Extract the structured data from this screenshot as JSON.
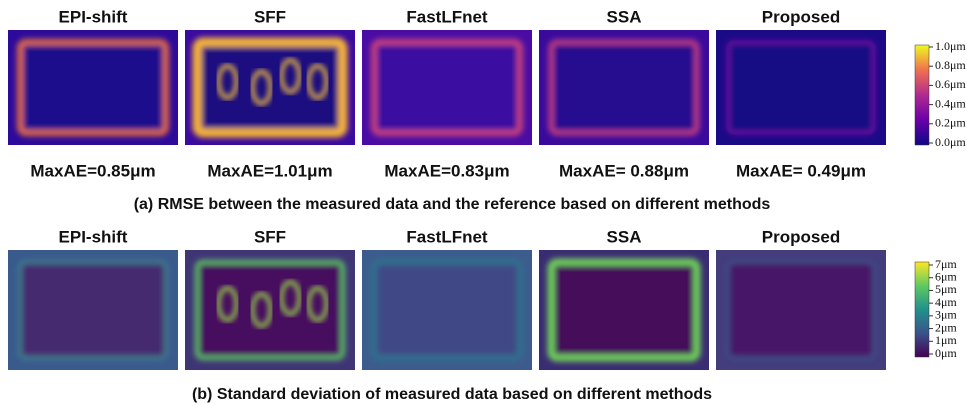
{
  "row_a": {
    "titles": [
      "EPI-shift",
      "SFF",
      "FastLFnet",
      "SSA",
      "Proposed"
    ],
    "metrics": [
      "MaxAE=0.85μm",
      "MaxAE=1.01μm",
      "MaxAE=0.83μm",
      "MaxAE= 0.88μm",
      "MaxAE= 0.49μm"
    ],
    "colorbar": [
      "1.0μm",
      "0.8μm",
      "0.6μm",
      "0.4μm",
      "0.2μm",
      "0.0μm"
    ],
    "caption": "(a) RMSE between the measured data and the reference based on different methods"
  },
  "row_b": {
    "titles": [
      "EPI-shift",
      "SFF",
      "FastLFnet",
      "SSA",
      "Proposed"
    ],
    "colorbar": [
      "7μm",
      "6μm",
      "5μm",
      "4μm",
      "3μm",
      "2μm",
      "1μm",
      "0μm"
    ],
    "caption": "(b) Standard deviation of measured data based on different methods"
  }
}
